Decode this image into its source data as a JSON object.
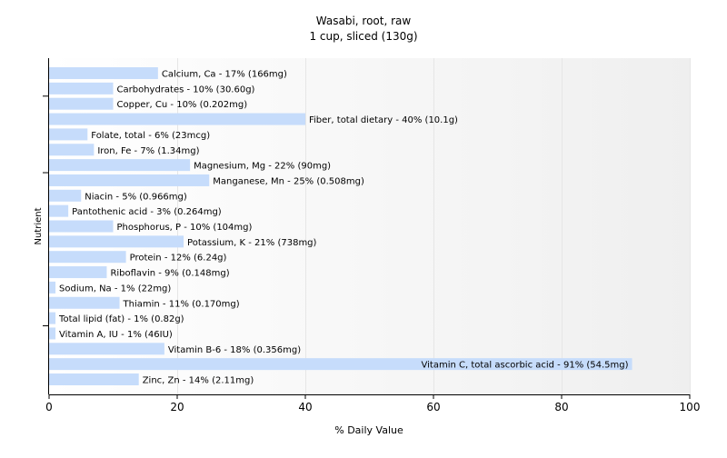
{
  "chart_data": {
    "type": "bar",
    "orientation": "horizontal",
    "title": "Wasabi, root, raw",
    "subtitle": "1 cup, sliced (130g)",
    "xlabel": "% Daily Value",
    "ylabel": "Nutrient",
    "xlim": [
      0,
      100
    ],
    "x_ticks": [
      "0",
      "20",
      "40",
      "60",
      "80",
      "100"
    ],
    "grid": true,
    "colors": {
      "bar": "#c6dcfb",
      "axis": "#000000",
      "grid": "#e6e6e6",
      "plot_bg_start": "#ffffff",
      "plot_bg_end": "#efefef"
    },
    "categories": [
      "Calcium, Ca",
      "Carbohydrates",
      "Copper, Cu",
      "Fiber, total dietary",
      "Folate, total",
      "Iron, Fe",
      "Magnesium, Mg",
      "Manganese, Mn",
      "Niacin",
      "Pantothenic acid",
      "Phosphorus, P",
      "Potassium, K",
      "Protein",
      "Riboflavin",
      "Sodium, Na",
      "Thiamin",
      "Total lipid (fat)",
      "Vitamin A, IU",
      "Vitamin B-6",
      "Vitamin C, total ascorbic acid",
      "Zinc, Zn"
    ],
    "values": [
      17,
      10,
      10,
      40,
      6,
      7,
      22,
      25,
      5,
      3,
      10,
      21,
      12,
      9,
      1,
      11,
      1,
      1,
      18,
      91,
      14
    ],
    "data_labels": [
      "Calcium, Ca - 17% (166mg)",
      "Carbohydrates - 10% (30.60g)",
      "Copper, Cu - 10% (0.202mg)",
      "Fiber, total dietary - 40% (10.1g)",
      "Folate, total - 6% (23mcg)",
      "Iron, Fe - 7% (1.34mg)",
      "Magnesium, Mg - 22% (90mg)",
      "Manganese, Mn - 25% (0.508mg)",
      "Niacin - 5% (0.966mg)",
      "Pantothenic acid - 3% (0.264mg)",
      "Phosphorus, P - 10% (104mg)",
      "Potassium, K - 21% (738mg)",
      "Protein - 12% (6.24g)",
      "Riboflavin - 9% (0.148mg)",
      "Sodium, Na - 1% (22mg)",
      "Thiamin - 11% (0.170mg)",
      "Total lipid (fat) - 1% (0.82g)",
      "Vitamin A, IU - 1% (46IU)",
      "Vitamin B-6 - 18% (0.356mg)",
      "Vitamin C, total ascorbic acid - 91% (54.5mg)",
      "Zinc, Zn - 14% (2.11mg)"
    ]
  }
}
